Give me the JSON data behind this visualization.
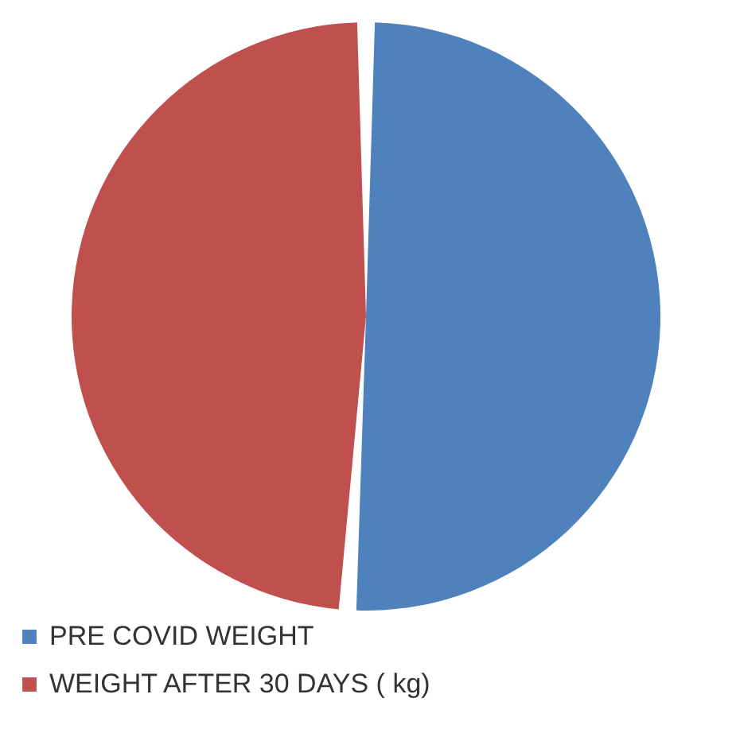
{
  "chart_data": {
    "type": "pie",
    "categories": [
      "PRE COVID WEIGHT",
      "WEIGHT AFTER 30 DAYS ( kg)"
    ],
    "values": [
      51,
      49
    ],
    "colors": [
      "#4f81bd",
      "#c0504d"
    ],
    "legend": "bottom"
  }
}
